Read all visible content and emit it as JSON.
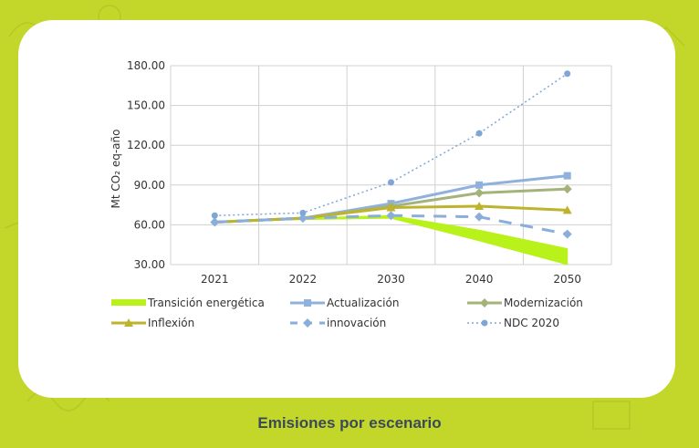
{
  "caption": "Emisiones por escenario",
  "colors": {
    "background": "#c3d62a",
    "card": "#ffffff",
    "transicion": "#b9f21a",
    "actualizacion": "#8fb1dc",
    "modernizacion": "#a3b37a",
    "inflexion": "#bdb32c",
    "innovacion": "#89aedc",
    "ndc": "#7fa6d6"
  },
  "chart_data": {
    "type": "line",
    "ylabel": "Mt CO₂ eq-año",
    "xlabel": "",
    "categories": [
      "2021",
      "2022",
      "2030",
      "2040",
      "2050"
    ],
    "ylim": [
      30,
      180
    ],
    "yticks": [
      "30.00",
      "60.00",
      "90.00",
      "120.00",
      "150.00",
      "180.00"
    ],
    "ytick_values": [
      30,
      60,
      90,
      120,
      150,
      180
    ],
    "grid": true,
    "legend_position": "bottom",
    "band": {
      "name": "Transición energética",
      "upper": [
        62,
        65,
        67,
        56,
        42
      ],
      "lower": [
        62,
        64,
        65,
        48,
        30
      ]
    },
    "series": [
      {
        "name": "Actualización",
        "key": "actualizacion",
        "style": "solid",
        "marker": "square",
        "values": [
          62,
          65,
          76,
          90,
          97
        ]
      },
      {
        "name": "Modernización",
        "key": "modernizacion",
        "style": "solid",
        "marker": "diamond",
        "values": [
          62,
          65,
          74,
          84,
          87
        ]
      },
      {
        "name": "Inflexión",
        "key": "inflexion",
        "style": "solid",
        "marker": "triangle",
        "values": [
          62,
          65,
          73,
          74,
          71
        ]
      },
      {
        "name": "innovación",
        "key": "innovacion",
        "style": "dash",
        "marker": "diamond",
        "values": [
          62,
          65,
          67,
          66,
          53
        ]
      },
      {
        "name": "NDC 2020",
        "key": "ndc",
        "style": "dot",
        "marker": "circle",
        "values": [
          67,
          69,
          92,
          129,
          174
        ]
      }
    ]
  }
}
